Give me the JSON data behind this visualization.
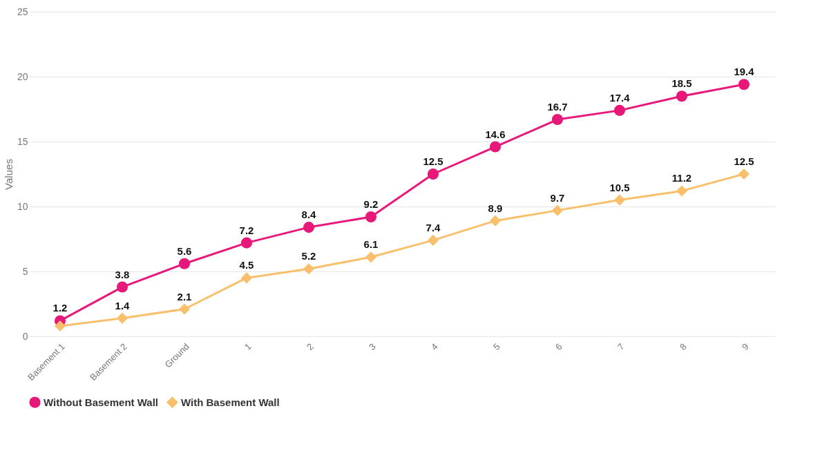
{
  "chart_data": {
    "type": "line",
    "ylabel": "Values",
    "categories": [
      "Basement 1",
      "Basement 2",
      "Ground",
      "1",
      "2",
      "3",
      "4",
      "5",
      "6",
      "7",
      "8",
      "9"
    ],
    "series": [
      {
        "name": "Without Basement Wall",
        "color": "#e8177a",
        "marker": "circle",
        "values": [
          1.2,
          3.8,
          5.6,
          7.2,
          8.4,
          9.2,
          12.5,
          14.6,
          16.7,
          17.4,
          18.5,
          19.4
        ],
        "value_labels": [
          "1.2",
          "3.8",
          "5.6",
          "7.2",
          "8.4",
          "9.2",
          "12.5",
          "14.6",
          "16.7",
          "17.4",
          "18.5",
          "19.4"
        ]
      },
      {
        "name": "With Basement Wall",
        "color": "#f9bf6b",
        "marker": "diamond",
        "values": [
          0.8,
          1.4,
          2.1,
          4.5,
          5.2,
          6.1,
          7.4,
          8.9,
          9.7,
          10.5,
          11.2,
          12.5
        ],
        "value_labels": [
          null,
          "1.4",
          "2.1",
          "4.5",
          "5.2",
          "6.1",
          "7.4",
          "8.9",
          "9.7",
          "10.5",
          "11.2",
          "12.5"
        ]
      }
    ],
    "ylim": [
      0,
      25
    ],
    "yticks": [
      0,
      5,
      10,
      15,
      20,
      25
    ],
    "grid": "y",
    "legend": "bottom"
  }
}
